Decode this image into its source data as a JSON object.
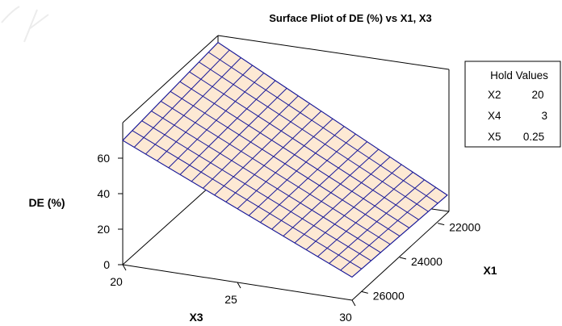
{
  "chart_data": {
    "type": "surface",
    "title": "Surface Pliot of DE (%) vs X1, X3",
    "zlabel": "DE (%)",
    "x3_label": "X3",
    "x1_label": "X1",
    "z_ticks": [
      "0",
      "20",
      "40",
      "60"
    ],
    "x3_ticks": [
      "20",
      "25",
      "30"
    ],
    "x1_ticks": [
      "22000",
      "24000",
      "26000"
    ],
    "x3_range": [
      20,
      30
    ],
    "x1_range": [
      21500,
      26500
    ],
    "z_range": [
      0,
      80
    ],
    "grid_x3": 21,
    "grid_x1": 11,
    "corners": {
      "x3_min_x1_max": 70,
      "x3_min_x1_min": 77,
      "x3_max_x1_min": 11,
      "x3_max_x1_max": 13
    },
    "hold_values": {
      "header": "Hold Values",
      "rows": [
        {
          "name": "X2",
          "value": "20"
        },
        {
          "name": "X4",
          "value": "3"
        },
        {
          "name": "X5",
          "value": "0.25"
        }
      ]
    },
    "colors": {
      "surface_fill": "#fde9d4",
      "surface_lines": "#1a1a99",
      "axes": "#000000"
    }
  }
}
